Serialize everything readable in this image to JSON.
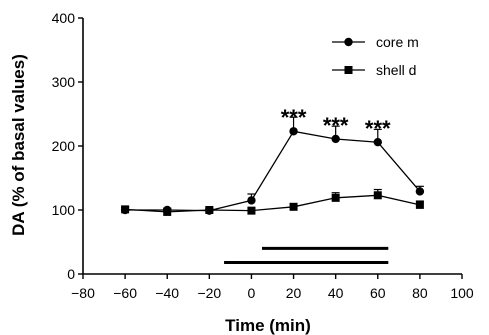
{
  "chart_data": {
    "type": "line",
    "xlabel": "Time (min)",
    "ylabel": "DA (% of basal values)",
    "xlim": [
      -80,
      100
    ],
    "ylim": [
      0,
      400
    ],
    "xticks": [
      -80,
      -60,
      -40,
      -20,
      0,
      20,
      40,
      60,
      80,
      100
    ],
    "yticks": [
      0,
      100,
      200,
      300,
      400
    ],
    "xtick_labels": [
      "−80",
      "−60",
      "−40",
      "−20",
      "0",
      "20",
      "40",
      "60",
      "80",
      "100"
    ],
    "ytick_labels": [
      "0",
      "100",
      "200",
      "300",
      "400"
    ],
    "legend_position": "top-right",
    "grid": false,
    "series": [
      {
        "name": "core m",
        "marker": "circle",
        "x": [
          -60,
          -40,
          -20,
          0,
          20,
          40,
          60,
          80
        ],
        "y": [
          100,
          100,
          99,
          115,
          223,
          211,
          206,
          129
        ],
        "err": [
          4,
          3,
          3,
          10,
          22,
          20,
          20,
          8
        ]
      },
      {
        "name": "shell d",
        "marker": "square",
        "x": [
          -60,
          -40,
          -20,
          0,
          20,
          40,
          60,
          80
        ],
        "y": [
          101,
          97,
          100,
          99,
          105,
          119,
          123,
          108
        ],
        "err": [
          4,
          3,
          3,
          4,
          5,
          8,
          9,
          6
        ]
      }
    ],
    "annotations": [
      {
        "text": "***",
        "x": 20,
        "y": 245
      },
      {
        "text": "***",
        "x": 40,
        "y": 233
      },
      {
        "text": "***",
        "x": 60,
        "y": 228
      }
    ],
    "bars": [
      {
        "x_start": 5,
        "x_end": 65,
        "y": 40
      },
      {
        "x_start": -13,
        "x_end": 65,
        "y": 18
      }
    ]
  }
}
